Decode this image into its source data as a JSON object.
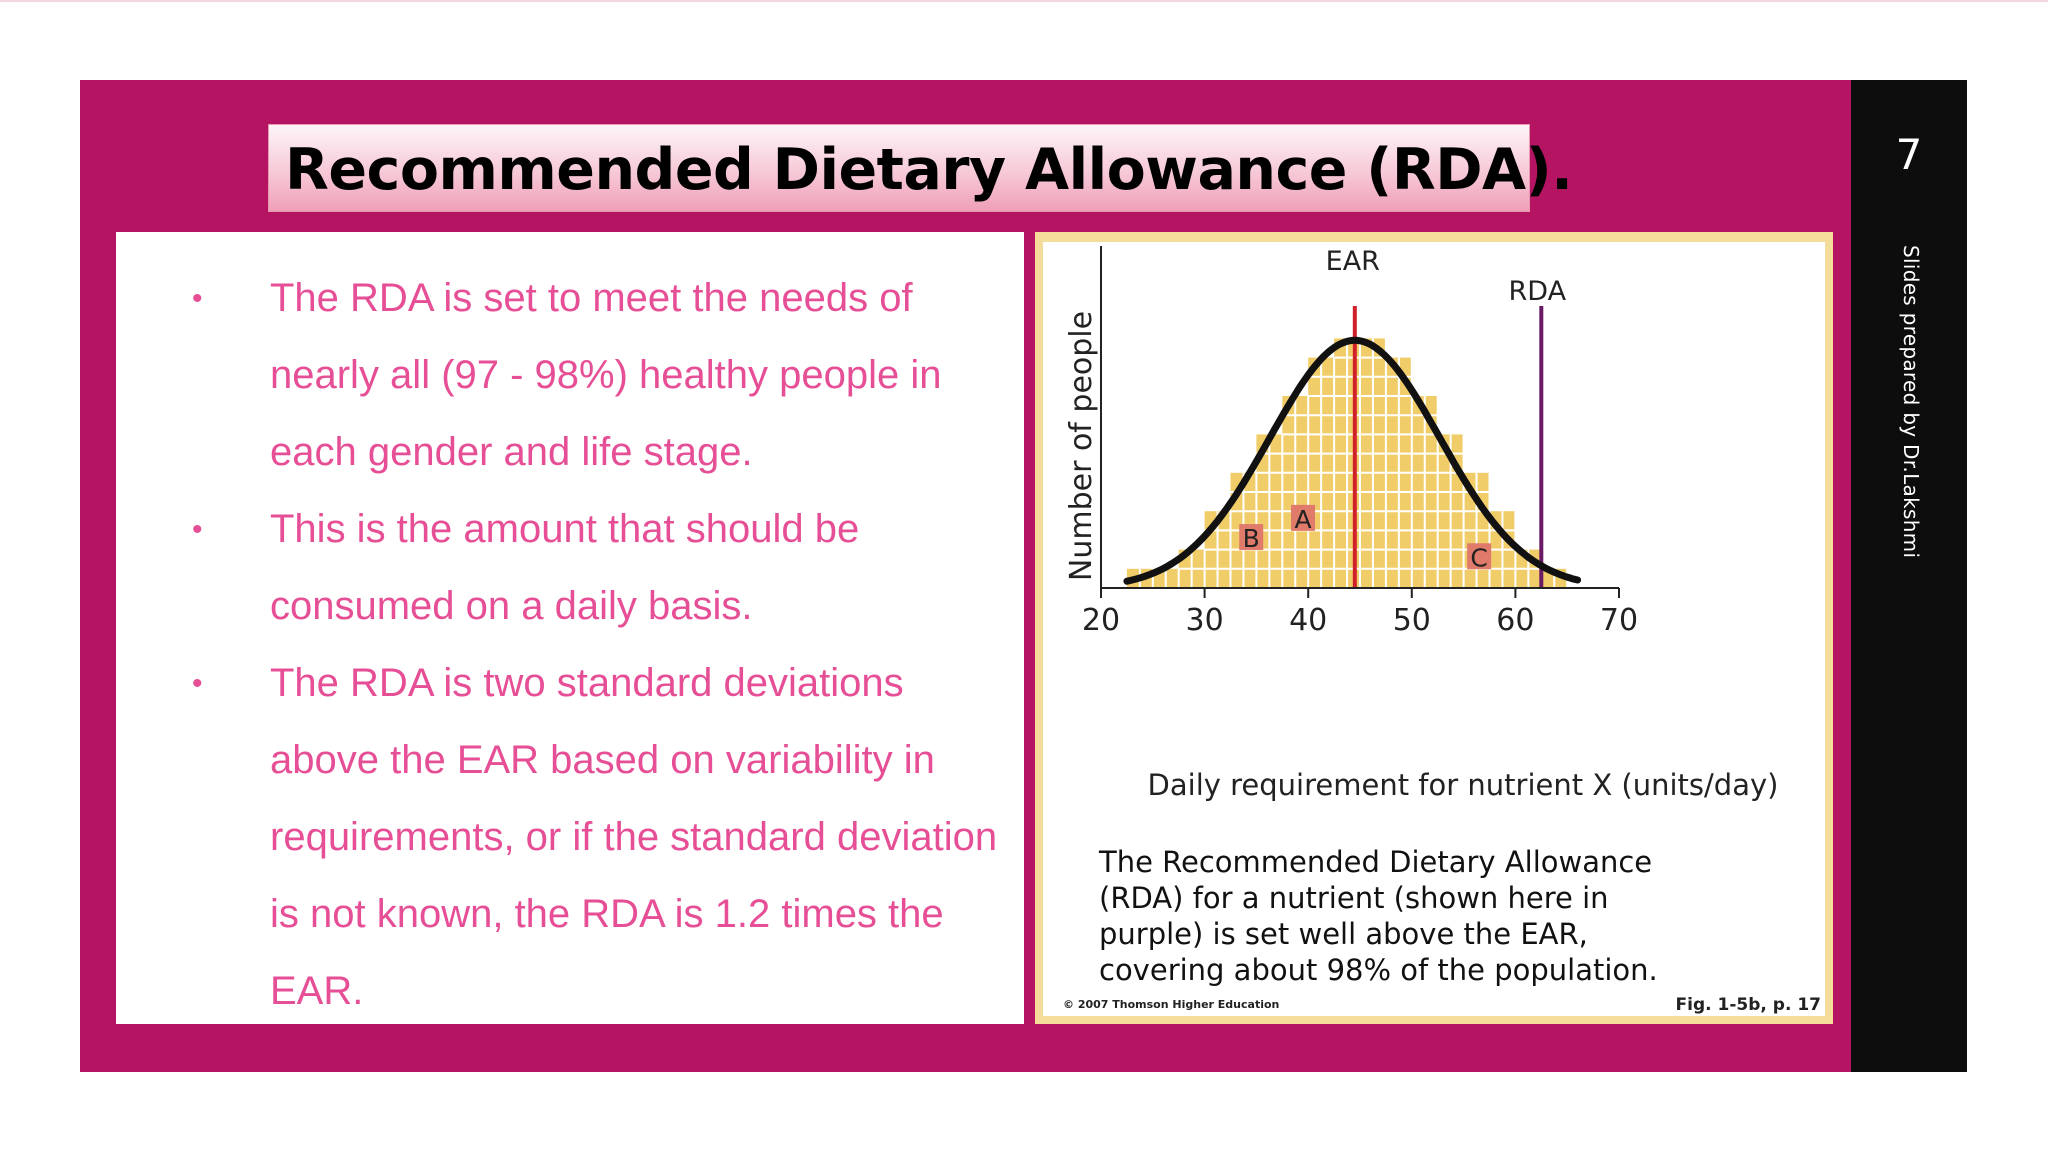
{
  "slide": {
    "title": "Recommended Dietary Allowance (RDA).",
    "number": "7",
    "credit": "Slides prepared by Dr.Lakshmi",
    "bullets": [
      "The RDA is set to meet the needs of nearly all (97 - 98%) healthy people in each gender and life stage.",
      "This is the amount that should be consumed on a daily basis.",
      "The RDA is two standard deviations above the EAR based on variability in requirements, or if the standard deviation is not known, the RDA is 1.2 times the EAR."
    ]
  },
  "figure": {
    "caption": "The Recommended Dietary Allowance (RDA) for a nutrient (shown here in purple) is set well above the EAR, covering about 98% of the population.",
    "caption_lines": [
      "The Recommended Dietary Allowance",
      "(RDA) for a nutrient (shown here in",
      "purple) is set well above the EAR,",
      "covering about 98% of the population."
    ],
    "copyright": "© 2007 Thomson Higher Education",
    "fig_ref": "Fig. 1-5b, p. 17",
    "colors": {
      "bars": "#f1cd6a",
      "grid": "#ffffff",
      "curve": "#111111",
      "ear_line": "#d0202a",
      "rda_line": "#6b1a66",
      "region_label_bg": "#e07a6a"
    }
  },
  "chart_data": {
    "type": "bar",
    "xlabel": "Daily requirement for nutrient X (units/day)",
    "ylabel": "Number of people",
    "xlim": [
      20,
      70
    ],
    "xticks": [
      "20",
      "30",
      "40",
      "50",
      "60",
      "70"
    ],
    "bin_width": 2.5,
    "bars": [
      {
        "x0": 22.5,
        "x1": 25,
        "height": 1
      },
      {
        "x0": 25,
        "x1": 27.5,
        "height": 1
      },
      {
        "x0": 27.5,
        "x1": 30,
        "height": 2
      },
      {
        "x0": 30,
        "x1": 32.5,
        "height": 4
      },
      {
        "x0": 32.5,
        "x1": 35,
        "height": 6
      },
      {
        "x0": 35,
        "x1": 37.5,
        "height": 8
      },
      {
        "x0": 37.5,
        "x1": 40,
        "height": 10
      },
      {
        "x0": 40,
        "x1": 42.5,
        "height": 12
      },
      {
        "x0": 42.5,
        "x1": 45,
        "height": 13
      },
      {
        "x0": 45,
        "x1": 47.5,
        "height": 13
      },
      {
        "x0": 47.5,
        "x1": 50,
        "height": 12
      },
      {
        "x0": 50,
        "x1": 52.5,
        "height": 10
      },
      {
        "x0": 52.5,
        "x1": 55,
        "height": 8
      },
      {
        "x0": 55,
        "x1": 57.5,
        "height": 6
      },
      {
        "x0": 57.5,
        "x1": 60,
        "height": 4
      },
      {
        "x0": 60,
        "x1": 62.5,
        "height": 2
      },
      {
        "x0": 62.5,
        "x1": 65,
        "height": 1
      }
    ],
    "ymax": 14,
    "curve": {
      "mean": 44.5,
      "sd": 8.2,
      "peak": 12.9,
      "x_start": 22.5,
      "x_end": 66
    },
    "lines": [
      {
        "label": "EAR",
        "x": 44.5
      },
      {
        "label": "RDA",
        "x": 62.5
      }
    ],
    "region_labels": [
      {
        "label": "A",
        "x": 39.5,
        "y": 3.6
      },
      {
        "label": "B",
        "x": 34.5,
        "y": 2.6
      },
      {
        "label": "C",
        "x": 56.5,
        "y": 1.6
      }
    ]
  }
}
